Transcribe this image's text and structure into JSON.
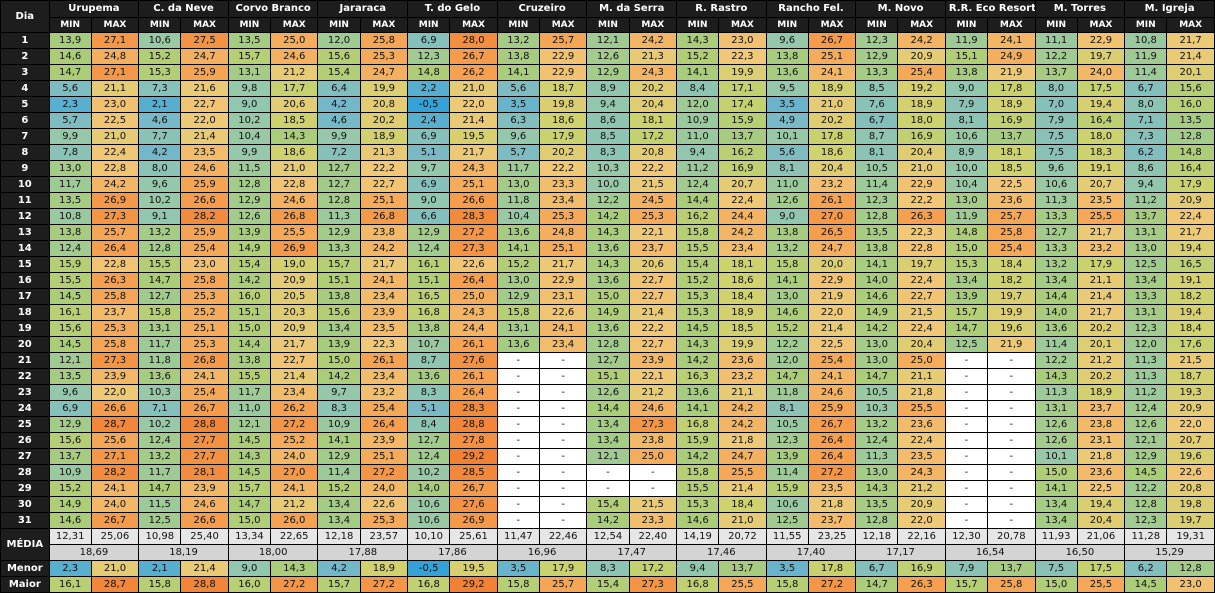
{
  "header": {
    "day_label": "Dia",
    "min_label": "MIN",
    "max_label": "MAX"
  },
  "stations": [
    "Urupema",
    "C. da Neve",
    "Corvo Branco",
    "Jararaca",
    "T. do Gelo",
    "Cruzeiro",
    "M. da Serra",
    "R. Rastro",
    "Rancho Fel.",
    "M. Novo",
    "R.R. Eco Resort",
    "M. Torres",
    "M. Igreja"
  ],
  "days": [
    "1",
    "2",
    "3",
    "4",
    "5",
    "6",
    "7",
    "8",
    "9",
    "10",
    "11",
    "12",
    "13",
    "14",
    "15",
    "16",
    "17",
    "18",
    "19",
    "20",
    "21",
    "22",
    "23",
    "24",
    "25",
    "26",
    "27",
    "28",
    "29",
    "30",
    "31"
  ],
  "rows": [
    [
      "13,9",
      "27,1",
      "10,6",
      "27,5",
      "13,5",
      "25,0",
      "12,0",
      "25,8",
      "6,9",
      "28,0",
      "13,2",
      "25,7",
      "12,1",
      "24,2",
      "14,3",
      "23,0",
      "9,6",
      "26,7",
      "12,3",
      "24,2",
      "11,9",
      "24,1",
      "11,1",
      "22,9",
      "10,8",
      "21,7"
    ],
    [
      "14,6",
      "24,8",
      "15,2",
      "24,7",
      "15,7",
      "24,6",
      "15,6",
      "25,3",
      "12,3",
      "26,7",
      "13,8",
      "22,9",
      "12,6",
      "21,3",
      "15,2",
      "22,3",
      "13,8",
      "25,1",
      "12,9",
      "20,9",
      "15,1",
      "24,9",
      "12,2",
      "19,7",
      "11,9",
      "21,4"
    ],
    [
      "14,7",
      "27,1",
      "15,3",
      "25,9",
      "13,1",
      "21,2",
      "15,4",
      "24,7",
      "14,8",
      "26,2",
      "14,1",
      "22,9",
      "12,9",
      "24,3",
      "14,1",
      "19,9",
      "13,6",
      "24,1",
      "13,3",
      "25,4",
      "13,8",
      "21,9",
      "13,7",
      "24,0",
      "11,4",
      "20,1"
    ],
    [
      "5,6",
      "21,1",
      "7,3",
      "21,6",
      "9,8",
      "17,7",
      "6,4",
      "19,9",
      "2,2",
      "21,0",
      "5,6",
      "18,7",
      "8,9",
      "20,2",
      "8,4",
      "17,1",
      "9,5",
      "18,9",
      "8,5",
      "19,2",
      "9,0",
      "17,8",
      "8,0",
      "17,5",
      "6,7",
      "15,6"
    ],
    [
      "2,3",
      "23,0",
      "2,1",
      "22,7",
      "9,0",
      "20,6",
      "4,2",
      "20,8",
      "-0,5",
      "22,0",
      "3,5",
      "19,8",
      "9,4",
      "20,4",
      "12,0",
      "17,4",
      "3,5",
      "21,0",
      "7,6",
      "18,9",
      "7,9",
      "18,9",
      "7,0",
      "19,4",
      "8,0",
      "16,0"
    ],
    [
      "5,7",
      "22,5",
      "4,6",
      "22,0",
      "10,2",
      "18,5",
      "4,6",
      "20,2",
      "2,4",
      "21,4",
      "6,3",
      "18,6",
      "8,6",
      "18,1",
      "10,9",
      "15,9",
      "4,9",
      "20,2",
      "6,7",
      "18,0",
      "8,1",
      "16,9",
      "7,9",
      "16,4",
      "7,1",
      "13,5"
    ],
    [
      "9,9",
      "21,0",
      "7,7",
      "21,4",
      "10,4",
      "14,3",
      "9,9",
      "18,9",
      "6,9",
      "19,5",
      "9,6",
      "17,9",
      "8,5",
      "17,2",
      "11,0",
      "13,7",
      "10,1",
      "17,8",
      "8,7",
      "16,9",
      "10,6",
      "13,7",
      "7,5",
      "18,0",
      "7,3",
      "12,8"
    ],
    [
      "7,8",
      "22,4",
      "4,2",
      "23,5",
      "9,9",
      "18,6",
      "7,2",
      "21,3",
      "5,1",
      "21,7",
      "5,7",
      "20,2",
      "8,3",
      "20,8",
      "9,4",
      "16,2",
      "5,6",
      "18,6",
      "8,1",
      "20,4",
      "8,9",
      "18,1",
      "7,5",
      "18,3",
      "6,2",
      "14,8"
    ],
    [
      "13,0",
      "22,8",
      "8,0",
      "24,6",
      "11,5",
      "21,0",
      "12,7",
      "22,2",
      "9,7",
      "24,3",
      "11,7",
      "22,2",
      "10,3",
      "22,2",
      "11,2",
      "16,9",
      "8,1",
      "20,4",
      "10,5",
      "21,0",
      "10,0",
      "18,5",
      "9,6",
      "19,1",
      "8,6",
      "16,4"
    ],
    [
      "11,7",
      "24,2",
      "9,6",
      "25,9",
      "12,8",
      "22,8",
      "12,7",
      "22,7",
      "6,9",
      "25,1",
      "13,0",
      "23,3",
      "10,0",
      "21,5",
      "12,4",
      "20,7",
      "11,0",
      "23,2",
      "11,4",
      "22,9",
      "10,4",
      "22,5",
      "10,6",
      "20,7",
      "9,4",
      "17,9"
    ],
    [
      "13,5",
      "26,9",
      "10,2",
      "26,6",
      "12,9",
      "24,6",
      "12,8",
      "25,1",
      "9,0",
      "26,6",
      "11,8",
      "23,4",
      "12,2",
      "24,5",
      "14,4",
      "22,4",
      "12,6",
      "26,1",
      "12,3",
      "22,2",
      "13,0",
      "23,6",
      "11,3",
      "23,5",
      "11,2",
      "20,9"
    ],
    [
      "10,8",
      "27,3",
      "9,1",
      "28,2",
      "12,6",
      "26,8",
      "11,3",
      "26,8",
      "6,6",
      "28,3",
      "10,4",
      "25,3",
      "14,2",
      "25,3",
      "16,2",
      "24,4",
      "9,0",
      "27,0",
      "12,8",
      "26,3",
      "11,9",
      "25,7",
      "13,3",
      "25,5",
      "13,7",
      "22,4"
    ],
    [
      "13,8",
      "25,7",
      "13,2",
      "25,9",
      "13,9",
      "25,5",
      "12,9",
      "23,8",
      "12,9",
      "27,2",
      "13,6",
      "24,8",
      "14,3",
      "22,1",
      "15,8",
      "24,2",
      "13,8",
      "26,5",
      "13,5",
      "22,3",
      "14,8",
      "25,8",
      "12,7",
      "21,7",
      "13,1",
      "21,7"
    ],
    [
      "12,4",
      "26,4",
      "12,8",
      "25,4",
      "14,9",
      "26,9",
      "13,3",
      "24,2",
      "12,4",
      "27,3",
      "14,1",
      "25,1",
      "13,6",
      "23,7",
      "15,5",
      "23,4",
      "13,2",
      "24,7",
      "13,8",
      "22,8",
      "15,0",
      "25,4",
      "13,3",
      "23,2",
      "13,0",
      "19,4"
    ],
    [
      "15,9",
      "22,8",
      "15,5",
      "23,0",
      "15,4",
      "19,0",
      "15,7",
      "21,7",
      "16,1",
      "22,6",
      "15,2",
      "21,7",
      "14,3",
      "20,6",
      "15,4",
      "18,1",
      "15,8",
      "20,0",
      "14,1",
      "19,7",
      "15,3",
      "18,4",
      "13,2",
      "17,9",
      "12,5",
      "16,5"
    ],
    [
      "15,5",
      "26,3",
      "14,7",
      "25,8",
      "14,2",
      "20,9",
      "15,1",
      "24,1",
      "15,1",
      "26,4",
      "13,0",
      "22,9",
      "13,6",
      "22,7",
      "15,2",
      "18,6",
      "14,1",
      "22,9",
      "14,0",
      "22,4",
      "13,4",
      "18,2",
      "13,4",
      "21,1",
      "13,4",
      "19,1"
    ],
    [
      "14,5",
      "25,8",
      "12,7",
      "25,3",
      "16,0",
      "20,5",
      "13,8",
      "23,4",
      "16,5",
      "25,0",
      "12,9",
      "23,1",
      "15,0",
      "22,7",
      "15,3",
      "18,4",
      "13,0",
      "21,9",
      "14,6",
      "22,7",
      "13,9",
      "19,7",
      "14,4",
      "21,4",
      "13,3",
      "18,2"
    ],
    [
      "16,1",
      "23,7",
      "15,8",
      "25,2",
      "15,1",
      "20,3",
      "15,6",
      "23,9",
      "16,8",
      "24,3",
      "15,8",
      "22,6",
      "14,9",
      "21,4",
      "15,3",
      "18,9",
      "14,6",
      "22,0",
      "14,9",
      "21,5",
      "15,7",
      "19,9",
      "14,0",
      "21,7",
      "13,1",
      "19,4"
    ],
    [
      "15,6",
      "25,3",
      "13,1",
      "25,1",
      "15,0",
      "20,9",
      "13,4",
      "23,5",
      "13,8",
      "24,4",
      "13,1",
      "24,1",
      "13,6",
      "22,2",
      "14,5",
      "18,5",
      "15,2",
      "21,4",
      "14,2",
      "22,4",
      "14,7",
      "19,6",
      "13,6",
      "20,2",
      "12,3",
      "18,4"
    ],
    [
      "14,5",
      "25,8",
      "11,7",
      "25,3",
      "14,4",
      "21,7",
      "13,9",
      "22,3",
      "10,7",
      "26,1",
      "13,6",
      "23,4",
      "12,8",
      "22,7",
      "14,3",
      "19,9",
      "12,2",
      "22,5",
      "13,0",
      "20,4",
      "12,5",
      "21,9",
      "11,4",
      "20,1",
      "12,0",
      "17,6"
    ],
    [
      "12,1",
      "27,3",
      "11,8",
      "26,8",
      "13,8",
      "22,7",
      "15,0",
      "26,1",
      "8,7",
      "27,6",
      "-",
      "-",
      "12,7",
      "23,9",
      "14,2",
      "23,6",
      "12,0",
      "25,4",
      "13,0",
      "25,0",
      "-",
      "-",
      "12,2",
      "21,2",
      "11,3",
      "21,5"
    ],
    [
      "13,5",
      "23,9",
      "13,6",
      "24,1",
      "15,5",
      "21,4",
      "14,2",
      "23,4",
      "13,6",
      "26,1",
      "-",
      "-",
      "15,1",
      "22,1",
      "16,3",
      "23,2",
      "14,7",
      "24,1",
      "14,7",
      "21,1",
      "-",
      "-",
      "14,3",
      "20,2",
      "11,3",
      "18,7"
    ],
    [
      "9,6",
      "22,0",
      "10,3",
      "25,4",
      "11,7",
      "23,4",
      "9,7",
      "23,2",
      "8,3",
      "26,4",
      "-",
      "-",
      "12,6",
      "21,2",
      "13,6",
      "21,1",
      "11,8",
      "24,6",
      "10,5",
      "21,8",
      "-",
      "-",
      "11,3",
      "18,9",
      "11,2",
      "19,3"
    ],
    [
      "6,9",
      "26,6",
      "7,1",
      "26,7",
      "11,0",
      "26,2",
      "8,3",
      "25,4",
      "5,1",
      "28,3",
      "-",
      "-",
      "14,4",
      "24,6",
      "14,1",
      "24,2",
      "8,1",
      "25,9",
      "10,3",
      "25,5",
      "-",
      "-",
      "13,1",
      "23,7",
      "12,4",
      "20,9"
    ],
    [
      "12,9",
      "28,7",
      "10,2",
      "28,8",
      "12,1",
      "27,2",
      "10,9",
      "26,4",
      "8,4",
      "28,8",
      "-",
      "-",
      "13,4",
      "27,3",
      "16,8",
      "24,2",
      "10,5",
      "26,7",
      "13,2",
      "23,6",
      "-",
      "-",
      "12,6",
      "23,8",
      "12,6",
      "22,0"
    ],
    [
      "15,6",
      "25,6",
      "12,4",
      "27,7",
      "14,5",
      "25,2",
      "14,1",
      "23,9",
      "12,7",
      "27,8",
      "-",
      "-",
      "13,4",
      "23,8",
      "15,9",
      "21,8",
      "12,3",
      "26,4",
      "12,4",
      "22,4",
      "-",
      "-",
      "12,6",
      "23,1",
      "12,1",
      "20,7"
    ],
    [
      "13,7",
      "27,1",
      "13,2",
      "27,7",
      "14,3",
      "24,0",
      "12,9",
      "25,1",
      "12,4",
      "29,2",
      "-",
      "-",
      "12,1",
      "25,0",
      "14,2",
      "24,7",
      "13,9",
      "26,4",
      "11,3",
      "23,5",
      "-",
      "-",
      "10,1",
      "21,8",
      "12,9",
      "19,6"
    ],
    [
      "10,9",
      "28,2",
      "11,7",
      "28,1",
      "14,5",
      "27,0",
      "11,4",
      "27,2",
      "10,2",
      "28,5",
      "-",
      "-",
      "-",
      "-",
      "15,8",
      "25,5",
      "11,4",
      "27,2",
      "13,0",
      "24,3",
      "-",
      "-",
      "15,0",
      "23,6",
      "14,5",
      "22,6"
    ],
    [
      "15,2",
      "24,1",
      "14,7",
      "23,9",
      "15,7",
      "24,1",
      "15,2",
      "24,0",
      "14,0",
      "26,7",
      "-",
      "-",
      "-",
      "-",
      "15,5",
      "21,4",
      "15,9",
      "23,5",
      "14,3",
      "21,2",
      "-",
      "-",
      "14,1",
      "22,5",
      "12,2",
      "20,8"
    ],
    [
      "14,9",
      "24,0",
      "11,5",
      "24,6",
      "14,7",
      "21,2",
      "13,4",
      "22,6",
      "10,6",
      "27,6",
      "-",
      "-",
      "15,4",
      "21,5",
      "15,3",
      "18,4",
      "10,6",
      "21,8",
      "13,5",
      "20,9",
      "-",
      "-",
      "13,4",
      "19,4",
      "12,8",
      "19,8"
    ],
    [
      "14,6",
      "26,7",
      "12,5",
      "26,6",
      "15,0",
      "26,0",
      "13,4",
      "25,3",
      "10,6",
      "26,9",
      "-",
      "-",
      "14,2",
      "23,3",
      "14,6",
      "21,0",
      "12,5",
      "23,7",
      "12,8",
      "22,0",
      "-",
      "-",
      "13,4",
      "20,4",
      "12,3",
      "19,7"
    ]
  ],
  "summary": {
    "media_label": "MÉDIA",
    "menor_label": "Menor",
    "maior_label": "Maior",
    "media_values": [
      "12,31",
      "25,06",
      "10,98",
      "25,40",
      "13,34",
      "22,65",
      "12,18",
      "23,57",
      "10,10",
      "25,61",
      "11,47",
      "22,46",
      "12,54",
      "22,40",
      "14,19",
      "20,72",
      "11,55",
      "23,25",
      "12,18",
      "22,16",
      "12,30",
      "20,78",
      "11,93",
      "21,06",
      "11,28",
      "19,31"
    ],
    "media_avg": [
      "18,69",
      "18,19",
      "18,00",
      "17,88",
      "17,86",
      "16,96",
      "17,47",
      "17,46",
      "17,40",
      "17,17",
      "16,54",
      "16,50",
      "15,29"
    ],
    "menor": [
      "2,3",
      "21,0",
      "2,1",
      "21,4",
      "9,0",
      "14,3",
      "4,2",
      "18,9",
      "-0,5",
      "19,5",
      "3,5",
      "17,9",
      "8,3",
      "17,2",
      "9,4",
      "13,7",
      "3,5",
      "17,8",
      "6,7",
      "16,9",
      "7,9",
      "13,7",
      "7,5",
      "17,5",
      "6,2",
      "12,8"
    ],
    "maior": [
      "16,1",
      "28,7",
      "15,8",
      "28,8",
      "16,0",
      "27,2",
      "15,7",
      "27,2",
      "16,8",
      "29,2",
      "15,8",
      "25,7",
      "15,4",
      "27,3",
      "16,8",
      "25,5",
      "15,8",
      "27,2",
      "14,7",
      "26,3",
      "15,7",
      "25,8",
      "15,0",
      "25,5",
      "14,5",
      "23,0"
    ]
  }
}
